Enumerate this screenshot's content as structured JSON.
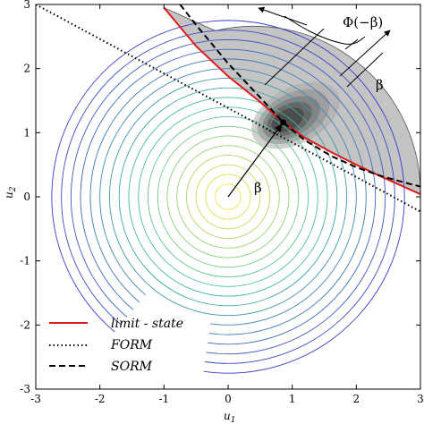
{
  "chart_data": {
    "type": "contour",
    "xlabel": "u",
    "xlabel_sub": "1",
    "ylabel": "u",
    "ylabel_sub": "2",
    "xlim": [
      -3,
      3
    ],
    "ylim": [
      -3,
      3
    ],
    "xticks": [
      "-3",
      "-2",
      "-1",
      "0",
      "1",
      "2",
      "3"
    ],
    "yticks": [
      "-3",
      "-2",
      "-1",
      "0",
      "1",
      "2",
      "3"
    ],
    "contour_radii": [
      0.2,
      0.35,
      0.5,
      0.65,
      0.8,
      0.95,
      1.1,
      1.25,
      1.4,
      1.55,
      1.7,
      1.85,
      2.0,
      2.15,
      2.3,
      2.45,
      2.6,
      2.75
    ],
    "contour_gap_deg": [
      230,
      262
    ],
    "beta": 1.26,
    "design_point": [
      0.86,
      1.16
    ],
    "series": [
      {
        "name": "limit - state",
        "style": "solid",
        "color": "#e0191b",
        "x": [
          -1.0,
          -0.5,
          0.0,
          0.5,
          0.86,
          1.2,
          1.6,
          2.0,
          2.4,
          2.8,
          3.0
        ],
        "y": [
          2.95,
          2.35,
          1.88,
          1.48,
          1.16,
          0.92,
          0.7,
          0.5,
          0.31,
          0.13,
          0.04
        ]
      },
      {
        "name": "FORM",
        "style": "dotted",
        "color": "#000000",
        "x": [
          -3.0,
          3.0
        ],
        "y": [
          3.0,
          -0.23
        ]
      },
      {
        "name": "SORM",
        "style": "dashed",
        "color": "#000000",
        "x": [
          -0.75,
          -0.5,
          0.0,
          0.5,
          0.86,
          1.2,
          1.6,
          2.0,
          2.4,
          2.8,
          3.0
        ],
        "y": [
          3.0,
          2.68,
          2.08,
          1.55,
          1.16,
          0.88,
          0.64,
          0.46,
          0.32,
          0.21,
          0.16
        ]
      }
    ],
    "annotations": {
      "beta_label": "β",
      "phi_label": "Φ(−β)",
      "beta_small": "β"
    },
    "legend": {
      "placement": "bottom-left"
    },
    "colors": {
      "contour_inner": "#f0e442",
      "contour_mid": "#40c0a0",
      "contour_outer": "#3a3acc",
      "failure_fill": "#c4c4c4"
    }
  }
}
